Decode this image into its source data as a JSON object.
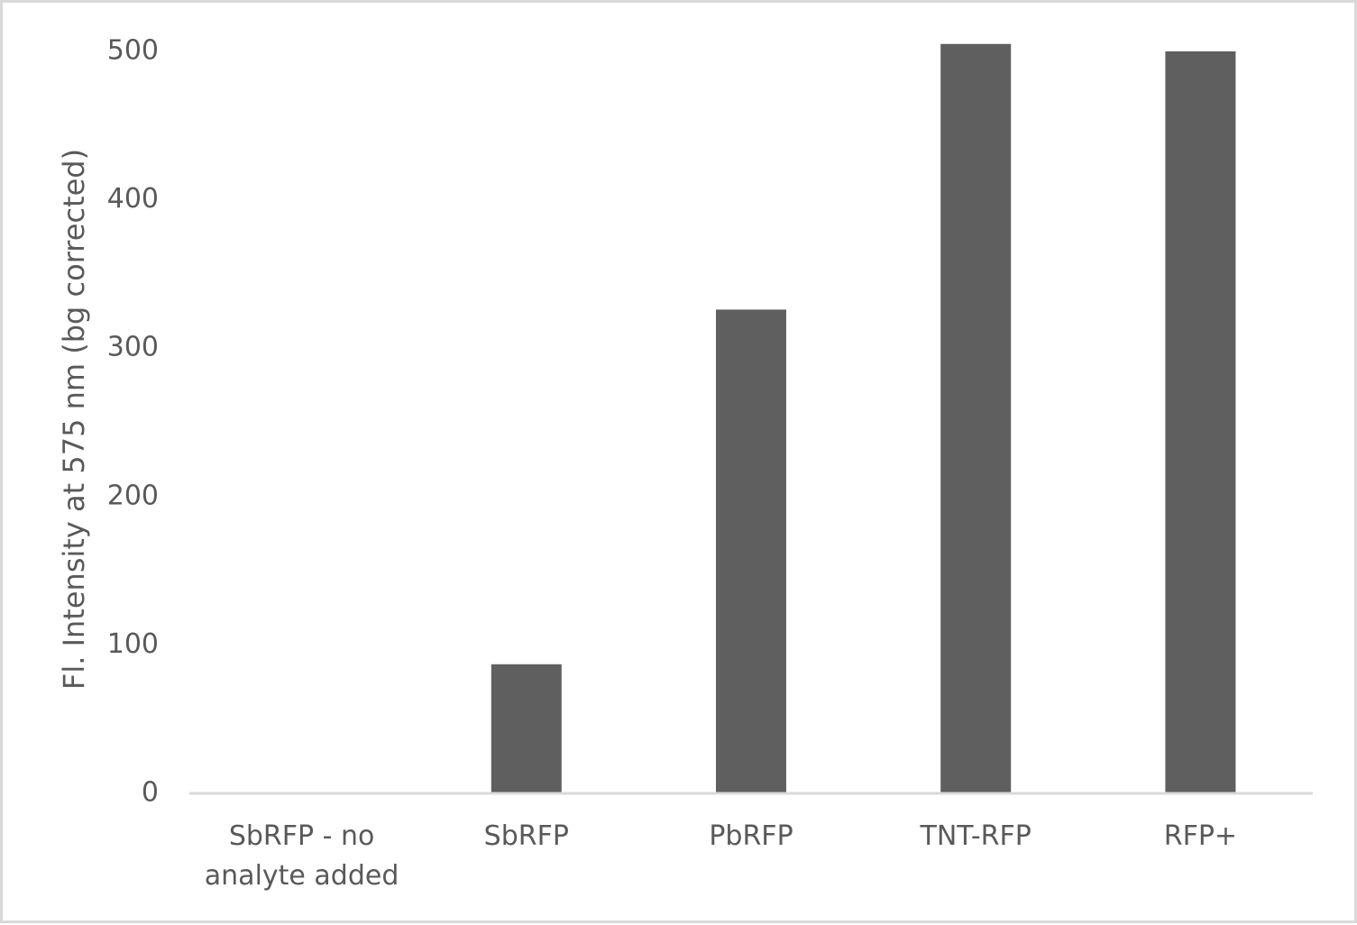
{
  "chart_data": {
    "type": "bar",
    "y_label": "Fl. Intensity at 575 nm (bg corrected)",
    "categories": [
      "SbRFP - no analyte added",
      "SbRFP",
      "PbRFP",
      "TNT-RFP",
      "RFP+"
    ],
    "values": [
      0,
      87,
      326,
      505,
      500
    ],
    "color": "#5f5f5f",
    "ylim": [
      0,
      510
    ],
    "yticks": [
      0,
      100,
      200,
      300,
      400,
      500
    ],
    "grid": false
  }
}
